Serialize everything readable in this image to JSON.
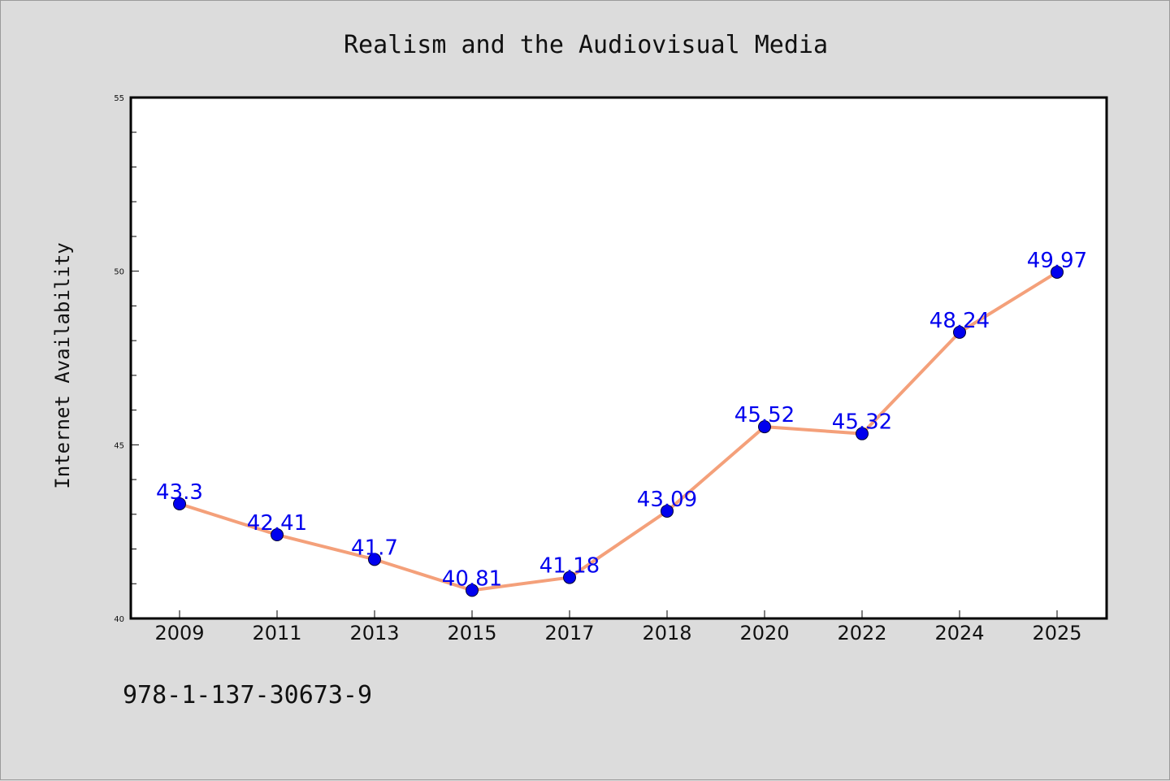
{
  "chart_data": {
    "type": "line",
    "title": "Realism and the Audiovisual Media",
    "xlabel": "",
    "ylabel": "Internet Availability",
    "categories": [
      "2009",
      "2011",
      "2013",
      "2015",
      "2017",
      "2018",
      "2020",
      "2022",
      "2024",
      "2025"
    ],
    "series": [
      {
        "values": [
          43.3,
          42.41,
          41.7,
          40.81,
          41.18,
          43.09,
          45.52,
          45.32,
          48.24,
          49.97
        ],
        "labels": [
          "43.3",
          "42.41",
          "41.7",
          "40.81",
          "41.18",
          "43.09",
          "45.52",
          "45.32",
          "48.24",
          "49.97"
        ]
      }
    ],
    "ylim": [
      40,
      55
    ],
    "y_major_ticks": [
      40,
      45,
      50,
      55
    ],
    "y_tick_labels": [
      "40",
      "45",
      "50",
      "55"
    ],
    "y_minor_step": 1,
    "grid": false,
    "legend": "none",
    "colors": {
      "line": "#f4a07a",
      "marker": "#0000ee",
      "data_label": "#0000ee",
      "plot_background": "#ffffff",
      "page_background": "#dcdcdc"
    }
  },
  "footer": {
    "text": "978-1-137-30673-9"
  }
}
